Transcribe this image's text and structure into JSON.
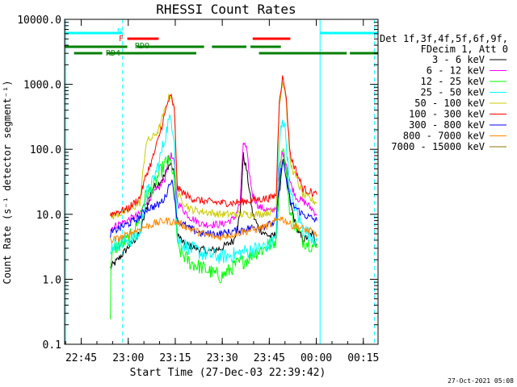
{
  "chart_data": {
    "type": "line",
    "title": "RHESSI Count Rates",
    "xlabel": "Start Time (27-Dec-03 22:39:42)",
    "ylabel": "Count Rate (s⁻¹ detector segment⁻¹)",
    "yscale": "log",
    "xlim_minutes": [
      0,
      100
    ],
    "ylim": [
      0.1,
      10000
    ],
    "x_ticks": [
      {
        "label": "22:45",
        "t": 5.3
      },
      {
        "label": "23:00",
        "t": 20.3
      },
      {
        "label": "23:15",
        "t": 35.3
      },
      {
        "label": "23:30",
        "t": 50.3
      },
      {
        "label": "23:45",
        "t": 65.3
      },
      {
        "label": "00:00",
        "t": 80.3
      },
      {
        "label": "00:15",
        "t": 95.3
      }
    ],
    "y_ticks": [
      {
        "label": "0.1",
        "v": 0.1
      },
      {
        "label": "1.0",
        "v": 1
      },
      {
        "label": "10.0",
        "v": 10
      },
      {
        "label": "100.0",
        "v": 100
      },
      {
        "label": "1000.0",
        "v": 1000
      },
      {
        "label": "10000.0",
        "v": 10000
      }
    ],
    "legend_header": [
      "Det 1f,3f,4f,5f,6f,9f,",
      "FDecim 1, Att 0"
    ],
    "legend_position": "right",
    "series": [
      {
        "name": "3 - 6 keV",
        "color": "#000000",
        "points": [
          [
            14.6,
            1.5
          ],
          [
            17,
            2
          ],
          [
            20,
            3
          ],
          [
            24,
            5
          ],
          [
            26,
            12
          ],
          [
            28,
            25
          ],
          [
            30,
            30
          ],
          [
            32,
            40
          ],
          [
            33,
            55
          ],
          [
            34,
            60
          ],
          [
            35,
            40
          ],
          [
            36,
            5
          ],
          [
            38,
            3.5
          ],
          [
            42,
            3
          ],
          [
            46,
            2.7
          ],
          [
            50,
            3
          ],
          [
            54,
            4
          ],
          [
            56,
            10
          ],
          [
            57,
            80
          ],
          [
            58,
            50
          ],
          [
            60,
            10
          ],
          [
            62,
            6
          ],
          [
            64,
            5
          ],
          [
            66,
            4.5
          ],
          [
            67.5,
            5
          ],
          [
            68.5,
            20
          ],
          [
            69.5,
            70
          ],
          [
            70.5,
            50
          ],
          [
            72,
            15
          ],
          [
            74,
            6
          ],
          [
            76,
            4
          ],
          [
            79,
            5
          ],
          [
            80.5,
            3.5
          ]
        ]
      },
      {
        "name": "6 - 12 keV",
        "color": "#ff00ff",
        "points": [
          [
            14.6,
            6
          ],
          [
            17,
            7
          ],
          [
            20,
            8
          ],
          [
            24,
            10
          ],
          [
            26,
            16
          ],
          [
            28,
            20
          ],
          [
            30,
            25
          ],
          [
            32,
            35
          ],
          [
            33,
            70
          ],
          [
            34,
            80
          ],
          [
            35,
            60
          ],
          [
            36,
            15
          ],
          [
            40,
            9
          ],
          [
            44,
            7
          ],
          [
            50,
            7
          ],
          [
            54,
            8.5
          ],
          [
            56,
            15
          ],
          [
            57,
            130
          ],
          [
            58,
            100
          ],
          [
            59,
            40
          ],
          [
            60,
            20
          ],
          [
            62,
            13
          ],
          [
            64,
            12
          ],
          [
            66,
            11
          ],
          [
            67.5,
            13
          ],
          [
            68.5,
            50
          ],
          [
            69.5,
            90
          ],
          [
            70.5,
            70
          ],
          [
            72,
            30
          ],
          [
            74,
            18
          ],
          [
            77,
            15
          ],
          [
            80.5,
            10
          ]
        ]
      },
      {
        "name": "12 - 25 keV",
        "color": "#00ff00",
        "points": [
          [
            14.6,
            0.2
          ],
          [
            14.8,
            2
          ],
          [
            16,
            3
          ],
          [
            20,
            4
          ],
          [
            22,
            5
          ],
          [
            24,
            10
          ],
          [
            26,
            20
          ],
          [
            28,
            25
          ],
          [
            30,
            40
          ],
          [
            32,
            60
          ],
          [
            33,
            65
          ],
          [
            34,
            60
          ],
          [
            35,
            35
          ],
          [
            36,
            3
          ],
          [
            40,
            1.8
          ],
          [
            44,
            1.5
          ],
          [
            48,
            1.2
          ],
          [
            50,
            1.1
          ],
          [
            52,
            1.3
          ],
          [
            54,
            1.6
          ],
          [
            56,
            1.8
          ],
          [
            58,
            2
          ],
          [
            60,
            2.5
          ],
          [
            64,
            3
          ],
          [
            66,
            3.5
          ],
          [
            67.5,
            4
          ],
          [
            68.5,
            30
          ],
          [
            69.5,
            120
          ],
          [
            70.5,
            50
          ],
          [
            72,
            10
          ],
          [
            76,
            4
          ],
          [
            80.5,
            3
          ]
        ]
      },
      {
        "name": "25 - 50 keV",
        "color": "#00ffff",
        "points": [
          [
            14.6,
            3
          ],
          [
            16,
            3.5
          ],
          [
            20,
            4
          ],
          [
            22,
            4.2
          ],
          [
            24,
            5
          ],
          [
            26,
            20
          ],
          [
            28,
            30
          ],
          [
            30,
            60
          ],
          [
            32,
            150
          ],
          [
            33,
            250
          ],
          [
            34,
            300
          ],
          [
            35,
            150
          ],
          [
            36,
            4
          ],
          [
            40,
            3
          ],
          [
            44,
            2.5
          ],
          [
            50,
            2.2
          ],
          [
            54,
            2.4
          ],
          [
            58,
            2.7
          ],
          [
            62,
            3
          ],
          [
            66,
            3.5
          ],
          [
            67.5,
            5
          ],
          [
            68.5,
            120
          ],
          [
            69.5,
            320
          ],
          [
            70.5,
            180
          ],
          [
            72,
            20
          ],
          [
            76,
            6
          ],
          [
            80.5,
            4
          ]
        ]
      },
      {
        "name": "50 - 100 keV",
        "color": "#cccc00",
        "points": [
          [
            14.6,
            9
          ],
          [
            17,
            10
          ],
          [
            20,
            11
          ],
          [
            24,
            15
          ],
          [
            26,
            130
          ],
          [
            28,
            150
          ],
          [
            30,
            200
          ],
          [
            32,
            400
          ],
          [
            33,
            600
          ],
          [
            34,
            700
          ],
          [
            35,
            400
          ],
          [
            36,
            20
          ],
          [
            40,
            12
          ],
          [
            44,
            11
          ],
          [
            50,
            10
          ],
          [
            54,
            10
          ],
          [
            58,
            10
          ],
          [
            62,
            10
          ],
          [
            66,
            11
          ],
          [
            67.5,
            12
          ],
          [
            68.5,
            500
          ],
          [
            69.5,
            1100
          ],
          [
            70.5,
            700
          ],
          [
            72,
            60
          ],
          [
            76,
            20
          ],
          [
            80.5,
            15
          ]
        ]
      },
      {
        "name": "100 - 300 keV",
        "color": "#ff0000",
        "points": [
          [
            14.6,
            10
          ],
          [
            17,
            11
          ],
          [
            20,
            12
          ],
          [
            24,
            18
          ],
          [
            26,
            40
          ],
          [
            28,
            70
          ],
          [
            30,
            150
          ],
          [
            32,
            350
          ],
          [
            33,
            550
          ],
          [
            34,
            650
          ],
          [
            35,
            400
          ],
          [
            36,
            25
          ],
          [
            40,
            18
          ],
          [
            44,
            16
          ],
          [
            50,
            15
          ],
          [
            54,
            15
          ],
          [
            58,
            16
          ],
          [
            62,
            17
          ],
          [
            66,
            18
          ],
          [
            67.5,
            20
          ],
          [
            68.5,
            600
          ],
          [
            69.5,
            1250
          ],
          [
            70.5,
            800
          ],
          [
            72,
            80
          ],
          [
            76,
            25
          ],
          [
            80.5,
            20
          ]
        ]
      },
      {
        "name": "300 - 800 keV",
        "color": "#0000ff",
        "points": [
          [
            14.6,
            5
          ],
          [
            17,
            6
          ],
          [
            20,
            7
          ],
          [
            24,
            9
          ],
          [
            26,
            12
          ],
          [
            28,
            13
          ],
          [
            30,
            14
          ],
          [
            32,
            18
          ],
          [
            33,
            25
          ],
          [
            34,
            35
          ],
          [
            35,
            20
          ],
          [
            36,
            8
          ],
          [
            40,
            6
          ],
          [
            44,
            5
          ],
          [
            50,
            5
          ],
          [
            54,
            5.5
          ],
          [
            58,
            6
          ],
          [
            62,
            6.5
          ],
          [
            66,
            7
          ],
          [
            67.5,
            8
          ],
          [
            68.5,
            30
          ],
          [
            69.5,
            70
          ],
          [
            70.5,
            40
          ],
          [
            72,
            15
          ],
          [
            76,
            10
          ],
          [
            80.5,
            8
          ]
        ]
      },
      {
        "name": "800 - 7000 keV",
        "color": "#ff8800",
        "points": [
          [
            14.6,
            4
          ],
          [
            17,
            4.2
          ],
          [
            20,
            4.8
          ],
          [
            24,
            6
          ],
          [
            28,
            7
          ],
          [
            32,
            8
          ],
          [
            36,
            7.5
          ],
          [
            40,
            6
          ],
          [
            44,
            5
          ],
          [
            48,
            4.5
          ],
          [
            50,
            4.5
          ],
          [
            54,
            5
          ],
          [
            58,
            5.5
          ],
          [
            62,
            6
          ],
          [
            66,
            7
          ],
          [
            67.5,
            8
          ],
          [
            68.5,
            9
          ],
          [
            70.5,
            8
          ],
          [
            72,
            7
          ],
          [
            76,
            6
          ],
          [
            80.5,
            5
          ]
        ]
      },
      {
        "name": "7000 - 15000 keV",
        "color": "#8b7500",
        "points": []
      }
    ],
    "attenuator_labels": {
      "n": "N",
      "f": "F",
      "rdo": "RDO",
      "rd4": "RD4"
    },
    "flag_bars": [
      {
        "color": "#00ffff",
        "t0": 0,
        "t1": 18.5,
        "row": 1
      },
      {
        "color": "#00ffff",
        "t0": 81.5,
        "t1": 100,
        "row": 1
      },
      {
        "color": "#ff0000",
        "t0": 20,
        "t1": 30,
        "row": 2
      },
      {
        "color": "#ff0000",
        "t0": 60,
        "t1": 72,
        "row": 2
      },
      {
        "color": "#008000",
        "t0": 0,
        "t1": 20,
        "row": 3
      },
      {
        "color": "#008000",
        "t0": 23,
        "t1": 44.5,
        "row": 3
      },
      {
        "color": "#008000",
        "t0": 47,
        "t1": 58,
        "row": 3
      },
      {
        "color": "#008000",
        "t0": 59.3,
        "t1": 69,
        "row": 3
      },
      {
        "color": "#008000",
        "t0": 3,
        "t1": 12,
        "row": 4
      },
      {
        "color": "#008000",
        "t0": 13.5,
        "t1": 42,
        "row": 4
      },
      {
        "color": "#008000",
        "t0": 62,
        "t1": 90,
        "row": 4
      },
      {
        "color": "#008000",
        "t0": 91,
        "t1": 100,
        "row": 4
      }
    ],
    "vertical_lines": [
      {
        "t": 0.3,
        "color": "#00ffff",
        "style": "solid"
      },
      {
        "t": 18.5,
        "color": "#00ffff",
        "style": "dashed"
      },
      {
        "t": 81.5,
        "color": "#00ffff",
        "style": "solid"
      },
      {
        "t": 98.8,
        "color": "#00ffff",
        "style": "dashed"
      }
    ],
    "timestamp": "27-Oct-2021 05:08"
  }
}
